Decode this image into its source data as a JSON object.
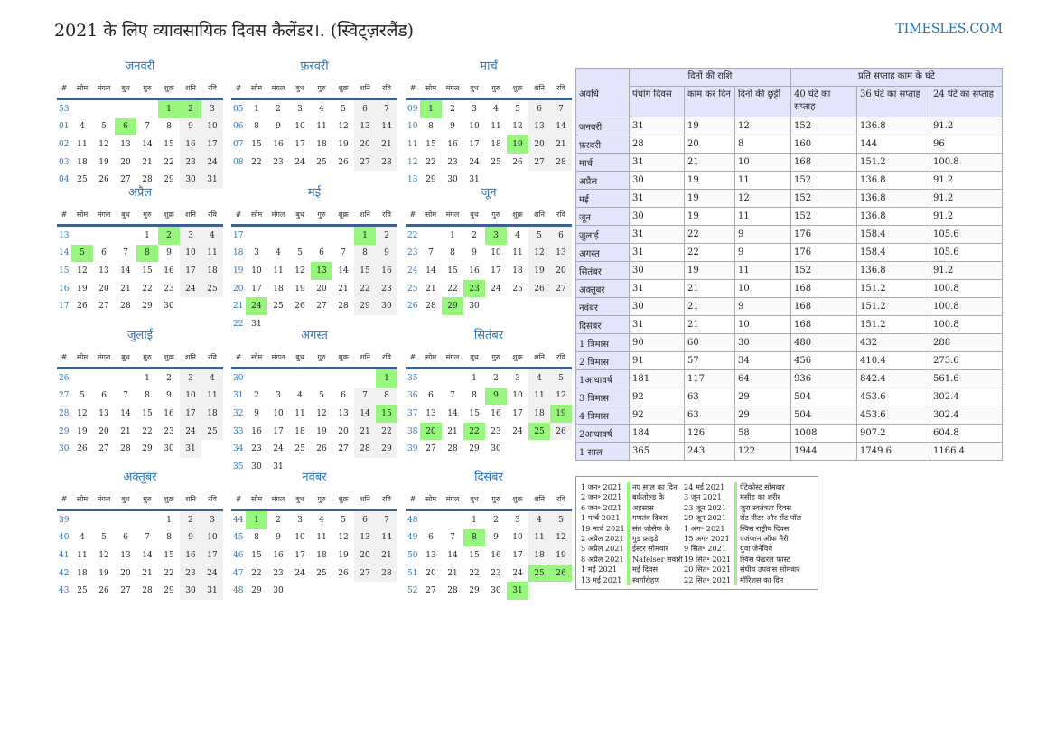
{
  "title": "2021 के लिए व्यावसायिक दिवस कैलेंडर।. (स्विट्ज़रलैंड)",
  "brand": "TIMESLES.COM",
  "year": 2021,
  "colors": {
    "holiday": "#98f57e",
    "accent": "#2a75bf",
    "weekend": "#f1f1f1"
  },
  "weekday_headers": [
    "#",
    "सोम",
    "मंगल",
    "बुध",
    "गुरु",
    "शुक्र",
    "शनि",
    "रवि"
  ],
  "months": [
    {
      "name": "जनवरी",
      "weeks": [
        "53",
        "01",
        "02",
        "03",
        "04"
      ],
      "holidays": [
        1,
        2,
        6
      ]
    },
    {
      "name": "फ़रवरी",
      "weeks": [
        "05",
        "06",
        "07",
        "08"
      ],
      "holidays": []
    },
    {
      "name": "मार्च",
      "weeks": [
        "09",
        "10",
        "11",
        "12",
        "13"
      ],
      "holidays": [
        1,
        19
      ]
    },
    {
      "name": "अप्रैल",
      "weeks": [
        "13",
        "14",
        "15",
        "16",
        "17"
      ],
      "holidays": [
        2,
        5,
        8
      ]
    },
    {
      "name": "मई",
      "weeks": [
        "17",
        "18",
        "19",
        "20",
        "21",
        "22"
      ],
      "holidays": [
        1,
        13,
        24
      ]
    },
    {
      "name": "जून",
      "weeks": [
        "22",
        "23",
        "24",
        "25",
        "26"
      ],
      "holidays": [
        3,
        23,
        29
      ]
    },
    {
      "name": "जुलाई",
      "weeks": [
        "26",
        "27",
        "28",
        "29",
        "30"
      ],
      "holidays": []
    },
    {
      "name": "अगस्त",
      "weeks": [
        "30",
        "31",
        "32",
        "33",
        "34",
        "35"
      ],
      "holidays": [
        1,
        15
      ]
    },
    {
      "name": "सितंबर",
      "weeks": [
        "35",
        "36",
        "37",
        "38",
        "39"
      ],
      "holidays": [
        9,
        19,
        20,
        22,
        25
      ]
    },
    {
      "name": "अक्तूबर",
      "weeks": [
        "39",
        "40",
        "41",
        "42",
        "43"
      ],
      "holidays": []
    },
    {
      "name": "नवंबर",
      "weeks": [
        "44",
        "45",
        "46",
        "47",
        "48"
      ],
      "holidays": [
        1
      ]
    },
    {
      "name": "दिसंबर",
      "weeks": [
        "48",
        "49",
        "50",
        "51",
        "52"
      ],
      "holidays": [
        8,
        25,
        26,
        31
      ]
    }
  ],
  "stats": {
    "period": "अवधि",
    "group1": "दिनों की राशि",
    "group2": "प्रति सप्ताह काम के घंटे",
    "cols": [
      "पंचांग दिवस",
      "काम कर दिन",
      "दिनों की छुट्टी",
      "40 घंटे का सप्ताह",
      "36 घंटे का सप्ताह",
      "24 घंटे का सप्ताह"
    ],
    "rows": [
      [
        "जनवरी",
        "31",
        "19",
        "12",
        "152",
        "136.8",
        "91.2"
      ],
      [
        "फ़रवरी",
        "28",
        "20",
        "8",
        "160",
        "144",
        "96"
      ],
      [
        "मार्च",
        "31",
        "21",
        "10",
        "168",
        "151.2",
        "100.8"
      ],
      [
        "अप्रैल",
        "30",
        "19",
        "11",
        "152",
        "136.8",
        "91.2"
      ],
      [
        "मई",
        "31",
        "19",
        "12",
        "152",
        "136.8",
        "91.2"
      ],
      [
        "जून",
        "30",
        "19",
        "11",
        "152",
        "136.8",
        "91.2"
      ],
      [
        "जुलाई",
        "31",
        "22",
        "9",
        "176",
        "158.4",
        "105.6"
      ],
      [
        "अगस्त",
        "31",
        "22",
        "9",
        "176",
        "158.4",
        "105.6"
      ],
      [
        "सितंबर",
        "30",
        "19",
        "11",
        "152",
        "136.8",
        "91.2"
      ],
      [
        "अक्तूबर",
        "31",
        "21",
        "10",
        "168",
        "151.2",
        "100.8"
      ],
      [
        "नवंबर",
        "30",
        "21",
        "9",
        "168",
        "151.2",
        "100.8"
      ],
      [
        "दिसंबर",
        "31",
        "21",
        "10",
        "168",
        "151.2",
        "100.8"
      ],
      [
        "1 त्रिमास",
        "90",
        "60",
        "30",
        "480",
        "432",
        "288"
      ],
      [
        "2 त्रिमास",
        "91",
        "57",
        "34",
        "456",
        "410.4",
        "273.6"
      ],
      [
        "1आधावर्ष",
        "181",
        "117",
        "64",
        "936",
        "842.4",
        "561.6"
      ],
      [
        "3 त्रिमास",
        "92",
        "63",
        "29",
        "504",
        "453.6",
        "302.4"
      ],
      [
        "4 त्रिमास",
        "92",
        "63",
        "29",
        "504",
        "453.6",
        "302.4"
      ],
      [
        "2आधावर्ष",
        "184",
        "126",
        "58",
        "1008",
        "907.2",
        "604.8"
      ],
      [
        "1 साल",
        "365",
        "243",
        "122",
        "1944",
        "1749.6",
        "1166.4"
      ]
    ]
  },
  "holidays": [
    [
      "1 जन॰ 2021",
      "नए साल का दिन"
    ],
    [
      "2 जन॰ 2021",
      "बर्कतोल्ड के"
    ],
    [
      "6 जन॰ 2021",
      "अहसास"
    ],
    [
      "1 मार्च 2021",
      "गणतंत्र दिवस"
    ],
    [
      "19 मार्च 2021",
      "संत जोसेफ के"
    ],
    [
      "2 अप्रैल 2021",
      "गुड फ्राइडे"
    ],
    [
      "5 अप्रैल 2021",
      "ईस्टर सोमवार"
    ],
    [
      "8 अप्रैल 2021",
      "Näfelser सवारी"
    ],
    [
      "1 मई 2021",
      "मई दिवस"
    ],
    [
      "13 मई 2021",
      "स्वर्गारोहण"
    ],
    [
      "24 मई 2021",
      "पेंटेकोस्ट सोमवार"
    ],
    [
      "3 जून 2021",
      "मसीह का शरीर"
    ],
    [
      "23 जून 2021",
      "जुरा स्वतंत्रता दिवस"
    ],
    [
      "29 जून 2021",
      "सेंट पीटर और सेंट पॉल"
    ],
    [
      "1 अग॰ 2021",
      "स्विस राष्ट्रीय दिवस"
    ],
    [
      "15 अग॰ 2021",
      "एजंप्शन ऑफ मैरी"
    ],
    [
      "9 सित॰ 2021",
      "युवा जेनेविये"
    ],
    [
      "19 सित॰ 2021",
      "स्विस फेडरल फास्ट"
    ],
    [
      "20 सित॰ 2021",
      "संघीय उपवास सोमवार"
    ],
    [
      "22 सित॰ 2021",
      "मॉरिशस का दिन"
    ]
  ]
}
